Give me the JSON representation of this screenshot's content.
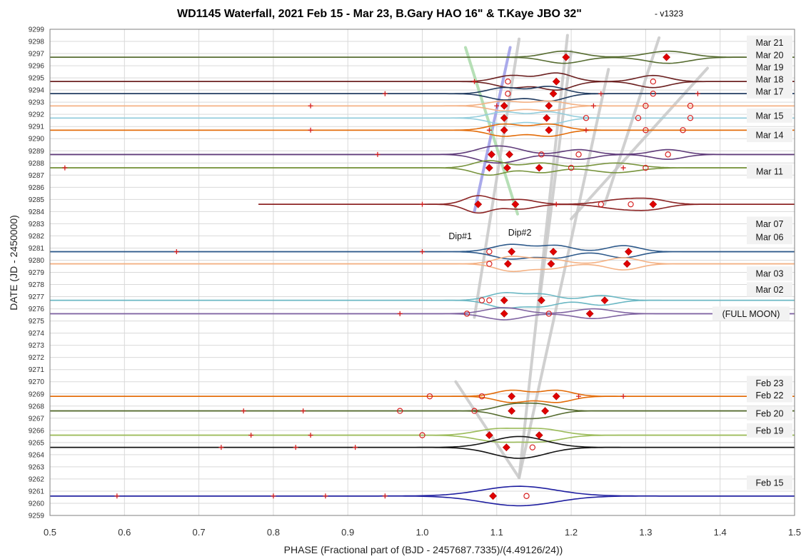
{
  "chart_data": {
    "type": "line",
    "title": "WD1145 Waterfall, 2021 Feb 15 - Mar 23, B.Gary HAO 16\" & T.Kaye JBO 32\"",
    "subtitle": "- v1323",
    "xlabel": "PHASE (Fractional part of (BJD - 2457687.7335)/(4.49126/24))",
    "ylabel": "DATE (JD - 2450000)",
    "xlim": [
      0.5,
      1.5
    ],
    "ylim": [
      9259,
      9299
    ],
    "xticks": [
      "0.5",
      "0.6",
      "0.7",
      "0.8",
      "0.9",
      "1.0",
      "1.1",
      "1.2",
      "1.3",
      "1.4",
      "1.5"
    ],
    "yticks": [
      "9259",
      "9260",
      "9261",
      "9262",
      "9263",
      "9264",
      "9265",
      "9266",
      "9267",
      "9268",
      "9269",
      "9270",
      "9271",
      "9272",
      "9273",
      "9274",
      "9275",
      "9276",
      "9277",
      "9278",
      "9279",
      "9280",
      "9281",
      "9282",
      "9283",
      "9284",
      "9285",
      "9286",
      "9287",
      "9288",
      "9289",
      "9290",
      "9291",
      "9292",
      "9293",
      "9294",
      "9295",
      "9296",
      "9297",
      "9298",
      "9299"
    ],
    "grid": true,
    "date_labels": [
      {
        "text": "Mar 21",
        "y": 9297.9
      },
      {
        "text": "Mar 20",
        "y": 9296.9
      },
      {
        "text": "Mar 19",
        "y": 9295.9
      },
      {
        "text": "Mar 18",
        "y": 9294.9
      },
      {
        "text": "Mar 17",
        "y": 9293.9
      },
      {
        "text": "Mar 15",
        "y": 9291.9
      },
      {
        "text": "Mar 14",
        "y": 9290.3
      },
      {
        "text": "Mar 11",
        "y": 9287.3
      },
      {
        "text": "Mar 07",
        "y": 9283.0
      },
      {
        "text": "Mar 06",
        "y": 9281.9
      },
      {
        "text": "Mar 03",
        "y": 9278.9
      },
      {
        "text": "Mar 02",
        "y": 9277.6
      },
      {
        "text": "(FULL MOON)",
        "y": 9275.6
      },
      {
        "text": "Feb 23",
        "y": 9269.9
      },
      {
        "text": "Feb 22",
        "y": 9268.9
      },
      {
        "text": "Feb 20",
        "y": 9267.4
      },
      {
        "text": "Feb 19",
        "y": 9266.0
      },
      {
        "text": "Feb 15",
        "y": 9261.7
      }
    ],
    "dip_labels": [
      {
        "text": "Dip#1",
        "x": 1.051,
        "y": 9282.0
      },
      {
        "text": "Dip#2",
        "x": 1.131,
        "y": 9282.3
      }
    ],
    "series": [
      {
        "date": 9296.7,
        "color": "#556b2f",
        "xmin": 0.5,
        "xmax": 1.5,
        "bumps": [
          [
            1.19,
            0.035,
            0.5
          ],
          [
            1.33,
            0.04,
            0.5
          ]
        ],
        "diamonds": [
          1.193,
          1.328
        ],
        "circles": [],
        "pluses": []
      },
      {
        "date": 9294.7,
        "color": "#6b1f1f",
        "xmin": 0.5,
        "xmax": 1.5,
        "bumps": [
          [
            1.12,
            0.03,
            0.5
          ],
          [
            1.18,
            0.03,
            0.7
          ],
          [
            1.31,
            0.03,
            0.5
          ]
        ],
        "diamonds": [
          1.18
        ],
        "circles": [
          1.115,
          1.31
        ],
        "pluses": [
          1.07
        ]
      },
      {
        "date": 9293.7,
        "color": "#1f3a5f",
        "xmin": 0.5,
        "xmax": 1.5,
        "bumps": [
          [
            1.11,
            0.03,
            0.5
          ],
          [
            1.17,
            0.03,
            0.6
          ]
        ],
        "diamonds": [
          1.176
        ],
        "circles": [
          1.115,
          1.31
        ],
        "pluses": [
          0.95,
          1.24,
          1.37
        ]
      },
      {
        "date": 9292.7,
        "color": "#f4b183",
        "xmin": 0.5,
        "xmax": 1.5,
        "bumps": [
          [
            1.11,
            0.03,
            0.4
          ],
          [
            1.17,
            0.03,
            0.4
          ]
        ],
        "diamonds": [
          1.11,
          1.17
        ],
        "circles": [
          1.3,
          1.36
        ],
        "pluses": [
          0.85,
          1.1,
          1.23
        ]
      },
      {
        "date": 9291.7,
        "color": "#92cddc",
        "xmin": 0.5,
        "xmax": 1.5,
        "bumps": [
          [
            1.11,
            0.03,
            0.5
          ],
          [
            1.17,
            0.03,
            0.5
          ]
        ],
        "diamonds": [
          1.11,
          1.167
        ],
        "circles": [
          1.22,
          1.29,
          1.36
        ],
        "pluses": []
      },
      {
        "date": 9290.7,
        "color": "#e36c09",
        "xmin": 0.5,
        "xmax": 1.5,
        "bumps": [
          [
            1.11,
            0.03,
            0.5
          ],
          [
            1.17,
            0.03,
            0.5
          ]
        ],
        "diamonds": [
          1.11,
          1.17
        ],
        "circles": [
          1.3,
          1.35
        ],
        "pluses": [
          0.85,
          1.09,
          1.22
        ]
      },
      {
        "date": 9288.7,
        "color": "#5f3b7a",
        "xmin": 0.5,
        "xmax": 1.5,
        "bumps": [
          [
            1.09,
            0.03,
            0.5
          ],
          [
            1.12,
            0.03,
            0.4
          ],
          [
            1.21,
            0.03,
            0.4
          ],
          [
            1.33,
            0.03,
            0.4
          ]
        ],
        "diamonds": [
          1.093,
          1.117
        ],
        "circles": [
          1.16,
          1.21,
          1.33
        ],
        "pluses": [
          0.94
        ]
      },
      {
        "date": 9287.6,
        "color": "#77933c",
        "xmin": 0.5,
        "xmax": 1.45,
        "bumps": [
          [
            1.09,
            0.03,
            0.6
          ],
          [
            1.16,
            0.03,
            0.4
          ],
          [
            1.26,
            0.04,
            0.4
          ]
        ],
        "diamonds": [
          1.09,
          1.114,
          1.157
        ],
        "circles": [
          1.2,
          1.3
        ],
        "pluses": [
          0.52,
          1.27
        ]
      },
      {
        "date": 9284.6,
        "color": "#8b2323",
        "xmin": 0.78,
        "xmax": 1.5,
        "bumps": [
          [
            1.075,
            0.025,
            0.7
          ],
          [
            1.13,
            0.03,
            0.4
          ],
          [
            1.27,
            0.04,
            0.4
          ],
          [
            1.31,
            0.03,
            0.3
          ]
        ],
        "diamonds": [
          1.075,
          1.125,
          1.31
        ],
        "circles": [
          1.24,
          1.28
        ],
        "pluses": [
          1.0,
          1.18
        ]
      },
      {
        "date": 9280.7,
        "color": "#2e5a8b",
        "xmin": 0.5,
        "xmax": 1.5,
        "bumps": [
          [
            1.12,
            0.035,
            0.6
          ],
          [
            1.18,
            0.03,
            0.5
          ],
          [
            1.27,
            0.03,
            0.5
          ]
        ],
        "diamonds": [
          1.12,
          1.176,
          1.277
        ],
        "circles": [
          1.09
        ],
        "pluses": [
          0.67,
          1.0
        ]
      },
      {
        "date": 9279.7,
        "color": "#f4b183",
        "xmin": 0.5,
        "xmax": 1.5,
        "bumps": [
          [
            1.12,
            0.03,
            0.6
          ],
          [
            1.17,
            0.03,
            0.4
          ],
          [
            1.27,
            0.03,
            0.5
          ]
        ],
        "diamonds": [
          1.115,
          1.173,
          1.275
        ],
        "circles": [
          1.09
        ],
        "pluses": []
      },
      {
        "date": 9276.7,
        "color": "#6ab7c3",
        "xmin": 0.5,
        "xmax": 1.5,
        "bumps": [
          [
            1.11,
            0.03,
            0.6
          ],
          [
            1.16,
            0.03,
            0.5
          ],
          [
            1.24,
            0.03,
            0.4
          ]
        ],
        "diamonds": [
          1.11,
          1.16,
          1.245
        ],
        "circles": [
          1.08,
          1.09
        ],
        "pluses": []
      },
      {
        "date": 9275.6,
        "color": "#8064a2",
        "xmin": 0.5,
        "xmax": 1.5,
        "bumps": [
          [
            1.11,
            0.035,
            0.5
          ],
          [
            1.23,
            0.035,
            0.4
          ]
        ],
        "diamonds": [
          1.11,
          1.225
        ],
        "circles": [
          1.06,
          1.17
        ],
        "pluses": [
          0.97
        ]
      },
      {
        "date": 9268.8,
        "color": "#e36c09",
        "xmin": 0.5,
        "xmax": 1.5,
        "bumps": [
          [
            1.12,
            0.03,
            0.5
          ],
          [
            1.18,
            0.03,
            0.5
          ]
        ],
        "diamonds": [
          1.12,
          1.18
        ],
        "circles": [
          1.01,
          1.08
        ],
        "pluses": [
          1.21,
          1.27
        ]
      },
      {
        "date": 9267.6,
        "color": "#556b2f",
        "xmin": 0.5,
        "xmax": 1.5,
        "bumps": [
          [
            1.12,
            0.03,
            0.5
          ],
          [
            1.16,
            0.03,
            0.5
          ]
        ],
        "diamonds": [
          1.12,
          1.165
        ],
        "circles": [
          0.97,
          1.07
        ],
        "pluses": [
          0.76,
          0.84
        ]
      },
      {
        "date": 9265.6,
        "color": "#9bbb59",
        "xmin": 0.5,
        "xmax": 1.5,
        "bumps": [
          [
            1.1,
            0.04,
            0.5
          ],
          [
            1.16,
            0.04,
            0.5
          ]
        ],
        "diamonds": [
          1.09,
          1.157
        ],
        "circles": [
          1.0
        ],
        "pluses": [
          0.77,
          0.85
        ]
      },
      {
        "date": 9264.6,
        "color": "#111111",
        "xmin": 0.5,
        "xmax": 1.5,
        "bumps": [
          [
            1.13,
            0.05,
            0.9
          ]
        ],
        "diamonds": [
          1.113
        ],
        "circles": [
          1.148
        ],
        "pluses": [
          0.73,
          0.83,
          0.91
        ]
      },
      {
        "date": 9260.6,
        "color": "#1f1fa0",
        "xmin": 0.5,
        "xmax": 1.5,
        "bumps": [
          [
            1.13,
            0.07,
            0.8
          ]
        ],
        "diamonds": [
          1.095
        ],
        "circles": [
          1.14
        ],
        "pluses": [
          0.59,
          0.8,
          0.87,
          0.95
        ]
      }
    ],
    "trend_lines": [
      {
        "name": "Dip#1",
        "color": "#9b9be8",
        "points": [
          [
            1.118,
            9297.5
          ],
          [
            1.07,
            9284.0
          ]
        ]
      },
      {
        "name": "Dip#2",
        "color": "#a9d9a9",
        "points": [
          [
            1.058,
            9297.5
          ],
          [
            1.128,
            9283.8
          ]
        ]
      },
      {
        "name": "",
        "color": "#c8c8c8",
        "points": [
          [
            1.045,
            9270.0
          ],
          [
            1.13,
            9262.1
          ],
          [
            1.195,
            9298.5
          ]
        ]
      },
      {
        "name": "",
        "color": "#c8c8c8",
        "points": [
          [
            1.13,
            9262.1
          ],
          [
            1.25,
            9295.7
          ]
        ]
      },
      {
        "name": "",
        "color": "#c8c8c8",
        "points": [
          [
            1.07,
            9275.3
          ],
          [
            1.13,
            9298.2
          ]
        ]
      },
      {
        "name": "",
        "color": "#c8c8c8",
        "points": [
          [
            1.155,
            9275.5
          ],
          [
            1.2,
            9297.2
          ]
        ]
      },
      {
        "name": "",
        "color": "#c8c8c8",
        "points": [
          [
            1.245,
            9284.6
          ],
          [
            1.318,
            9298.3
          ]
        ]
      },
      {
        "name": "",
        "color": "#c8c8c8",
        "points": [
          [
            1.2,
            9283.4
          ],
          [
            1.383,
            9295.8
          ]
        ]
      }
    ]
  }
}
